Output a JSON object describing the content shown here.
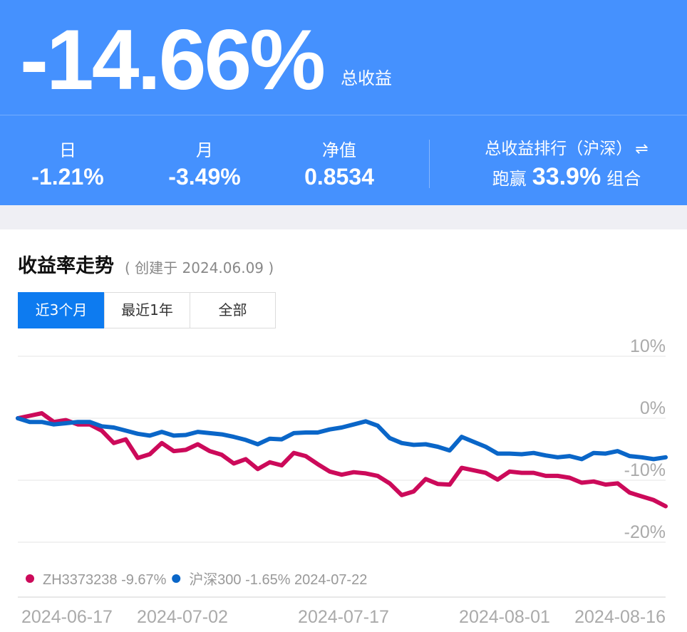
{
  "summary": {
    "total_return": "-14.66%",
    "total_return_label": "总收益"
  },
  "stats": {
    "day": {
      "label": "日",
      "value": "-1.21%"
    },
    "month": {
      "label": "月",
      "value": "-3.49%"
    },
    "nav": {
      "label": "净值",
      "value": "0.8534"
    }
  },
  "ranking": {
    "title": "总收益排行（沪深）",
    "swap_icon": "swap-arrows-icon",
    "prefix": "跑赢",
    "percent": "33.9%",
    "suffix": "组合"
  },
  "section": {
    "title": "收益率走势",
    "created": "( 创建于 2024.06.09 )"
  },
  "tabs": [
    {
      "label": "近3个月",
      "active": true
    },
    {
      "label": "最近1年",
      "active": false
    },
    {
      "label": "全部",
      "active": false
    }
  ],
  "colors": {
    "header_bg": "#4591fe",
    "tab_active": "#0d7bf0",
    "portfolio_line": "#cc0a5a",
    "index_line": "#0a66c8"
  },
  "chart_data": {
    "type": "line",
    "yticks": [
      "10%",
      "0%",
      "-10%",
      "-20%"
    ],
    "ylim": [
      -20,
      10
    ],
    "grid": true,
    "xtick_labels": [
      "2024-06-17",
      "2024-07-02",
      "2024-07-17",
      "2024-08-01",
      "2024-08-16"
    ],
    "legend": {
      "position": "bottom",
      "items": [
        {
          "text": "ZH3373238 -9.67%",
          "color": "#cc0a5a"
        },
        {
          "text": "沪深300 -1.65% 2024-07-22",
          "color": "#0a66c8"
        }
      ]
    },
    "series": [
      {
        "name": "ZH3373238",
        "color": "#cc0a5a",
        "values": [
          0,
          0.4,
          0.8,
          -0.6,
          -0.3,
          -1.0,
          -1.0,
          -2.0,
          -4.0,
          -3.4,
          -6.4,
          -5.8,
          -4.0,
          -5.3,
          -5.1,
          -4.2,
          -5.3,
          -5.9,
          -7.3,
          -6.6,
          -8.2,
          -7.1,
          -7.6,
          -5.6,
          -6.1,
          -7.4,
          -8.6,
          -9.1,
          -8.7,
          -8.9,
          -9.3,
          -10.5,
          -12.4,
          -11.8,
          -9.8,
          -10.6,
          -10.7,
          -8.0,
          -8.4,
          -8.8,
          -9.9,
          -8.6,
          -8.8,
          -8.8,
          -9.3,
          -9.3,
          -9.6,
          -10.4,
          -10.2,
          -10.7,
          -10.5,
          -12.0,
          -12.6,
          -13.2,
          -14.2
        ]
      },
      {
        "name": "沪深300",
        "color": "#0a66c8",
        "values": [
          0,
          -0.6,
          -0.6,
          -1.0,
          -0.8,
          -0.6,
          -0.6,
          -1.3,
          -1.5,
          -2.0,
          -2.5,
          -2.8,
          -2.2,
          -2.8,
          -2.7,
          -2.2,
          -2.4,
          -2.6,
          -3.0,
          -3.5,
          -4.2,
          -3.3,
          -3.4,
          -2.4,
          -2.3,
          -2.3,
          -1.8,
          -1.5,
          -1.0,
          -0.5,
          -1.2,
          -3.2,
          -4.0,
          -4.3,
          -4.2,
          -4.6,
          -5.2,
          -3.0,
          -3.8,
          -4.6,
          -5.7,
          -5.7,
          -5.8,
          -5.6,
          -6.0,
          -6.3,
          -6.1,
          -6.6,
          -5.6,
          -5.7,
          -5.3,
          -6.1,
          -6.3,
          -6.6,
          -6.3
        ]
      }
    ]
  }
}
